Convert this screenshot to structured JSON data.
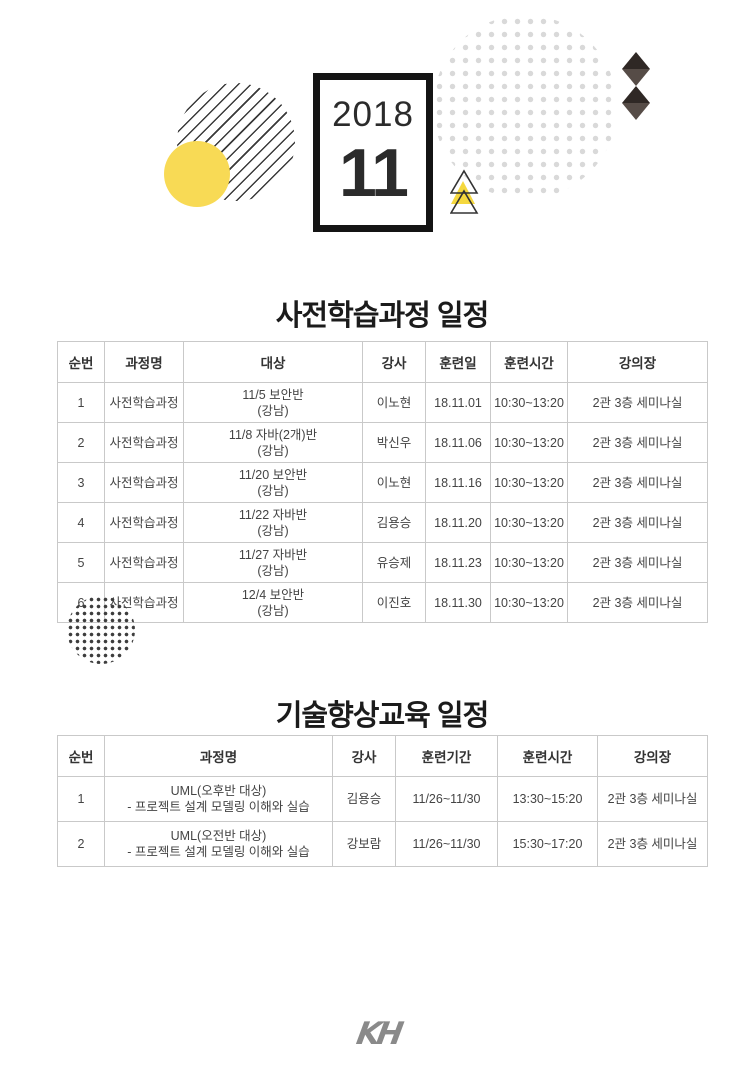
{
  "calendar": {
    "year": "2018",
    "month": "11"
  },
  "logo": {
    "text": "KH"
  },
  "colors": {
    "accent_yellow": "#f8da55",
    "decoration_dark": "#3a3a3a",
    "dots_light_gray": "#d9d9d9",
    "table_border": "#c9c9c9",
    "text_dark": "#333333",
    "logo_gray": "#8a8a8a"
  },
  "decorations": [
    "diagonal-stripes-circle",
    "yellow-circle",
    "dotted-circle-large",
    "double-triangle",
    "double-diamond",
    "dotted-circle-small"
  ],
  "tables": [
    {
      "title": "사전학습과정 일정",
      "headers": [
        "순번",
        "과정명",
        "대상",
        "강사",
        "훈련일",
        "훈련시간",
        "강의장"
      ],
      "rows": [
        [
          "1",
          "사전학습과정",
          "11/5 보안반\n(강남)",
          "이노현",
          "18.11.01",
          "10:30~13:20",
          "2관 3층 세미나실"
        ],
        [
          "2",
          "사전학습과정",
          "11/8 자바(2개)반\n(강남)",
          "박신우",
          "18.11.06",
          "10:30~13:20",
          "2관 3층 세미나실"
        ],
        [
          "3",
          "사전학습과정",
          "11/20 보안반\n(강남)",
          "이노현",
          "18.11.16",
          "10:30~13:20",
          "2관 3층 세미나실"
        ],
        [
          "4",
          "사전학습과정",
          "11/22 자바반\n(강남)",
          "김용승",
          "18.11.20",
          "10:30~13:20",
          "2관 3층 세미나실"
        ],
        [
          "5",
          "사전학습과정",
          "11/27 자바반\n(강남)",
          "유승제",
          "18.11.23",
          "10:30~13:20",
          "2관 3층 세미나실"
        ],
        [
          "6",
          "사전학습과정",
          "12/4 보안반\n(강남)",
          "이진호",
          "18.11.30",
          "10:30~13:20",
          "2관 3층 세미나실"
        ]
      ]
    },
    {
      "title": "기술향상교육 일정",
      "headers": [
        "순번",
        "과정명",
        "강사",
        "훈련기간",
        "훈련시간",
        "강의장"
      ],
      "rows": [
        [
          "1",
          "UML(오후반 대상)\n- 프로젝트 설계 모델링 이해와 실습",
          "김용승",
          "11/26~11/30",
          "13:30~15:20",
          "2관 3층 세미나실"
        ],
        [
          "2",
          "UML(오전반 대상)\n- 프로젝트 설계 모델링 이해와 실습",
          "강보람",
          "11/26~11/30",
          "15:30~17:20",
          "2관 3층 세미나실"
        ]
      ]
    }
  ]
}
